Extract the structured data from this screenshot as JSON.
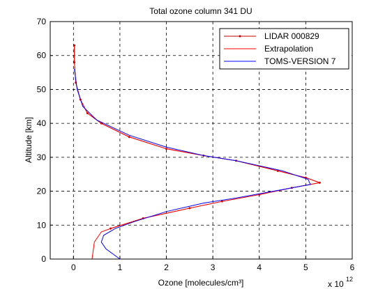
{
  "chart_data": {
    "type": "line",
    "title": "Total ozone column 341 DU",
    "x_label": "Ozone [molecules/cm³]",
    "y_label": "Altitude [km]",
    "x_multiplier": {
      "base": "x 10",
      "exponent": "12"
    },
    "xlim": [
      -0.5,
      6
    ],
    "xticks": [
      0,
      1,
      2,
      3,
      4,
      5,
      6
    ],
    "ylim": [
      0,
      70
    ],
    "yticks": [
      0,
      10,
      20,
      30,
      40,
      50,
      60,
      70
    ],
    "grid": true,
    "legend": "upper right",
    "series": [
      {
        "name": "LIDAR 000829",
        "color": "#c00000",
        "markers": true,
        "x": [
          0.8,
          1.5,
          2.5,
          3.2,
          4.0,
          4.7,
          5.3,
          5.0,
          4.4,
          3.5,
          2.8,
          2.0,
          1.2,
          0.6,
          0.3,
          0.15,
          0.05,
          0.02,
          0.02
        ],
        "y": [
          9,
          12,
          15,
          17,
          19,
          21,
          22.5,
          24,
          26,
          29,
          30.5,
          32.5,
          36,
          40,
          43,
          47,
          52,
          58,
          63
        ]
      },
      {
        "name": "Extrapolation",
        "color": "#ff0000",
        "markers": false,
        "x": [
          0.4,
          0.45,
          0.6,
          0.8,
          1.5,
          2.5,
          3.2,
          4.0,
          4.7,
          5.3,
          5.0,
          4.4,
          3.5,
          2.8,
          2.0,
          1.2,
          0.6,
          0.3,
          0.15,
          0.05,
          0.02,
          0.02
        ],
        "y": [
          0,
          5,
          8,
          9,
          12,
          15,
          17,
          19,
          21,
          22.5,
          24,
          26,
          29,
          30.5,
          32.5,
          36,
          40,
          43,
          47,
          52,
          58,
          63
        ]
      },
      {
        "name": "TOMS-VERSION 7",
        "color": "#0000ff",
        "markers": false,
        "x": [
          1.0,
          0.7,
          0.6,
          0.65,
          0.9,
          1.3,
          2.0,
          2.8,
          3.5,
          4.3,
          5.1,
          5.05,
          4.5,
          3.5,
          2.8,
          2.0,
          1.2,
          0.5,
          0.2,
          0.08,
          0.02
        ],
        "y": [
          0,
          3,
          5,
          7,
          9,
          11,
          14,
          16.5,
          18,
          20,
          22,
          23.5,
          26,
          29,
          30.5,
          33,
          36.5,
          41,
          45,
          50,
          56
        ]
      }
    ]
  }
}
